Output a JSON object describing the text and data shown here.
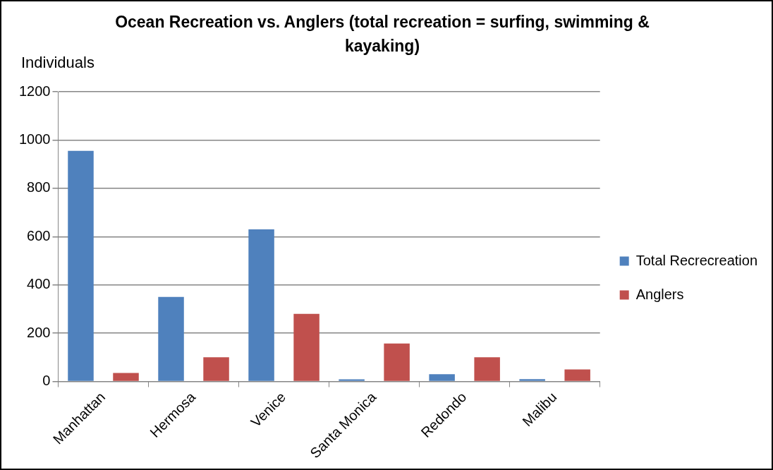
{
  "chart_data": {
    "type": "bar",
    "title": "Ocean Recreation vs. Anglers (total recreation = surfing, swimming & kayaking)",
    "ylabel": "Individuals",
    "categories": [
      "Manhattan",
      "Hermosa",
      "Venice",
      "Santa Monica",
      "Redondo",
      "Malibu"
    ],
    "series": [
      {
        "name": "Total Recrecreation",
        "color": "#4f81bd",
        "values": [
          955,
          350,
          630,
          9,
          30,
          10
        ]
      },
      {
        "name": "Anglers",
        "color": "#c0504d",
        "values": [
          35,
          100,
          280,
          157,
          100,
          50
        ]
      }
    ],
    "ylim": [
      0,
      1200
    ],
    "yticks": [
      0,
      200,
      400,
      600,
      800,
      1000,
      1200
    ],
    "grid": "y",
    "legend": "right"
  }
}
